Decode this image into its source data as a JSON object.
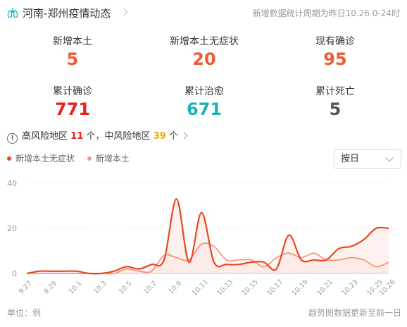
{
  "header": {
    "title": "河南-郑州疫情动态",
    "period": "新增数据统计周期为昨日10.26 0-24时"
  },
  "stats": [
    {
      "label": "新增本土",
      "value": "5",
      "color": "#f05a34"
    },
    {
      "label": "新增本土无症状",
      "value": "20",
      "color": "#f05a34"
    },
    {
      "label": "现有确诊",
      "value": "95",
      "color": "#f05a34"
    },
    {
      "label": "累计确诊",
      "value": "771",
      "color": "#e8211f"
    },
    {
      "label": "累计治愈",
      "value": "671",
      "color": "#1ab3b5"
    },
    {
      "label": "累计死亡",
      "value": "5",
      "color": "#555555"
    }
  ],
  "risk": {
    "high_label": "高风险地区",
    "high_count": "11",
    "unit1": "个，",
    "mid_label": "中风险地区",
    "mid_count": "39",
    "unit2": "个"
  },
  "legend": {
    "asymptomatic": "新增本土无症状",
    "local": "新增本土"
  },
  "dropdown": {
    "selected": "按日"
  },
  "footer": {
    "unit": "单位：例",
    "note": "趋势图数据更新至前一日"
  },
  "chart_data": {
    "type": "line",
    "x": [
      "9.27",
      "9.28",
      "9.29",
      "9.30",
      "10.1",
      "10.2",
      "10.3",
      "10.4",
      "10.5",
      "10.6",
      "10.7",
      "10.8",
      "10.9",
      "10.10",
      "10.11",
      "10.12",
      "10.13",
      "10.14",
      "10.15",
      "10.16",
      "10.17",
      "10.18",
      "10.19",
      "10.20",
      "10.21",
      "10.22",
      "10.23",
      "10.24",
      "10.25",
      "10.26"
    ],
    "x_tick_labels": [
      "9.27",
      "9.29",
      "10.1",
      "10.3",
      "10.5",
      "10.7",
      "10.9",
      "10.11",
      "10.13",
      "10.15",
      "10.17",
      "10.19",
      "10.21",
      "10.23",
      "10.25",
      "10.26"
    ],
    "ylim": [
      0,
      40
    ],
    "yticks": [
      0,
      20,
      40
    ],
    "series": [
      {
        "name": "新增本土无症状",
        "color": "#e8481e",
        "values": [
          0,
          1,
          1,
          1,
          1,
          0,
          0,
          1,
          3,
          2,
          4,
          6,
          33,
          5,
          27,
          5,
          4,
          4,
          5,
          5,
          2,
          17,
          6,
          6,
          6,
          11,
          12,
          15,
          20,
          20
        ]
      },
      {
        "name": "新增本土",
        "color": "#f59a86",
        "values": [
          0,
          0,
          0,
          0,
          0,
          0,
          0,
          0,
          2,
          1,
          1,
          8,
          7,
          6,
          13,
          12,
          6,
          6,
          6,
          3,
          7,
          9,
          7,
          9,
          6,
          6,
          7,
          6,
          3,
          5
        ]
      }
    ]
  }
}
